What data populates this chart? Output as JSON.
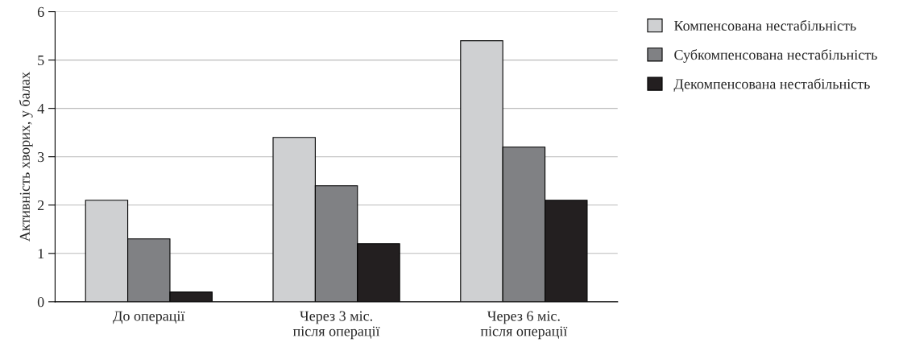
{
  "chart_data": {
    "type": "bar",
    "ylabel": "Активність хворих, у балах",
    "categories": [
      "До операції",
      "Через 3 міс.\nпісля операції",
      "Через 6 міс.\nпісля операції"
    ],
    "series": [
      {
        "name": "Компенсована нестабільність",
        "color": "#cfd0d2",
        "values": [
          2.1,
          3.4,
          5.4
        ]
      },
      {
        "name": "Субкомпенсована нестабільність",
        "color": "#808184",
        "values": [
          1.3,
          2.4,
          3.2
        ]
      },
      {
        "name": "Декомпенсована нестабільність",
        "color": "#231f20",
        "values": [
          0.2,
          1.2,
          2.1
        ]
      }
    ],
    "ylim": [
      0,
      6
    ],
    "yticks": [
      0,
      1,
      2,
      3,
      4,
      5,
      6
    ],
    "grid": "y",
    "legend": "right"
  }
}
